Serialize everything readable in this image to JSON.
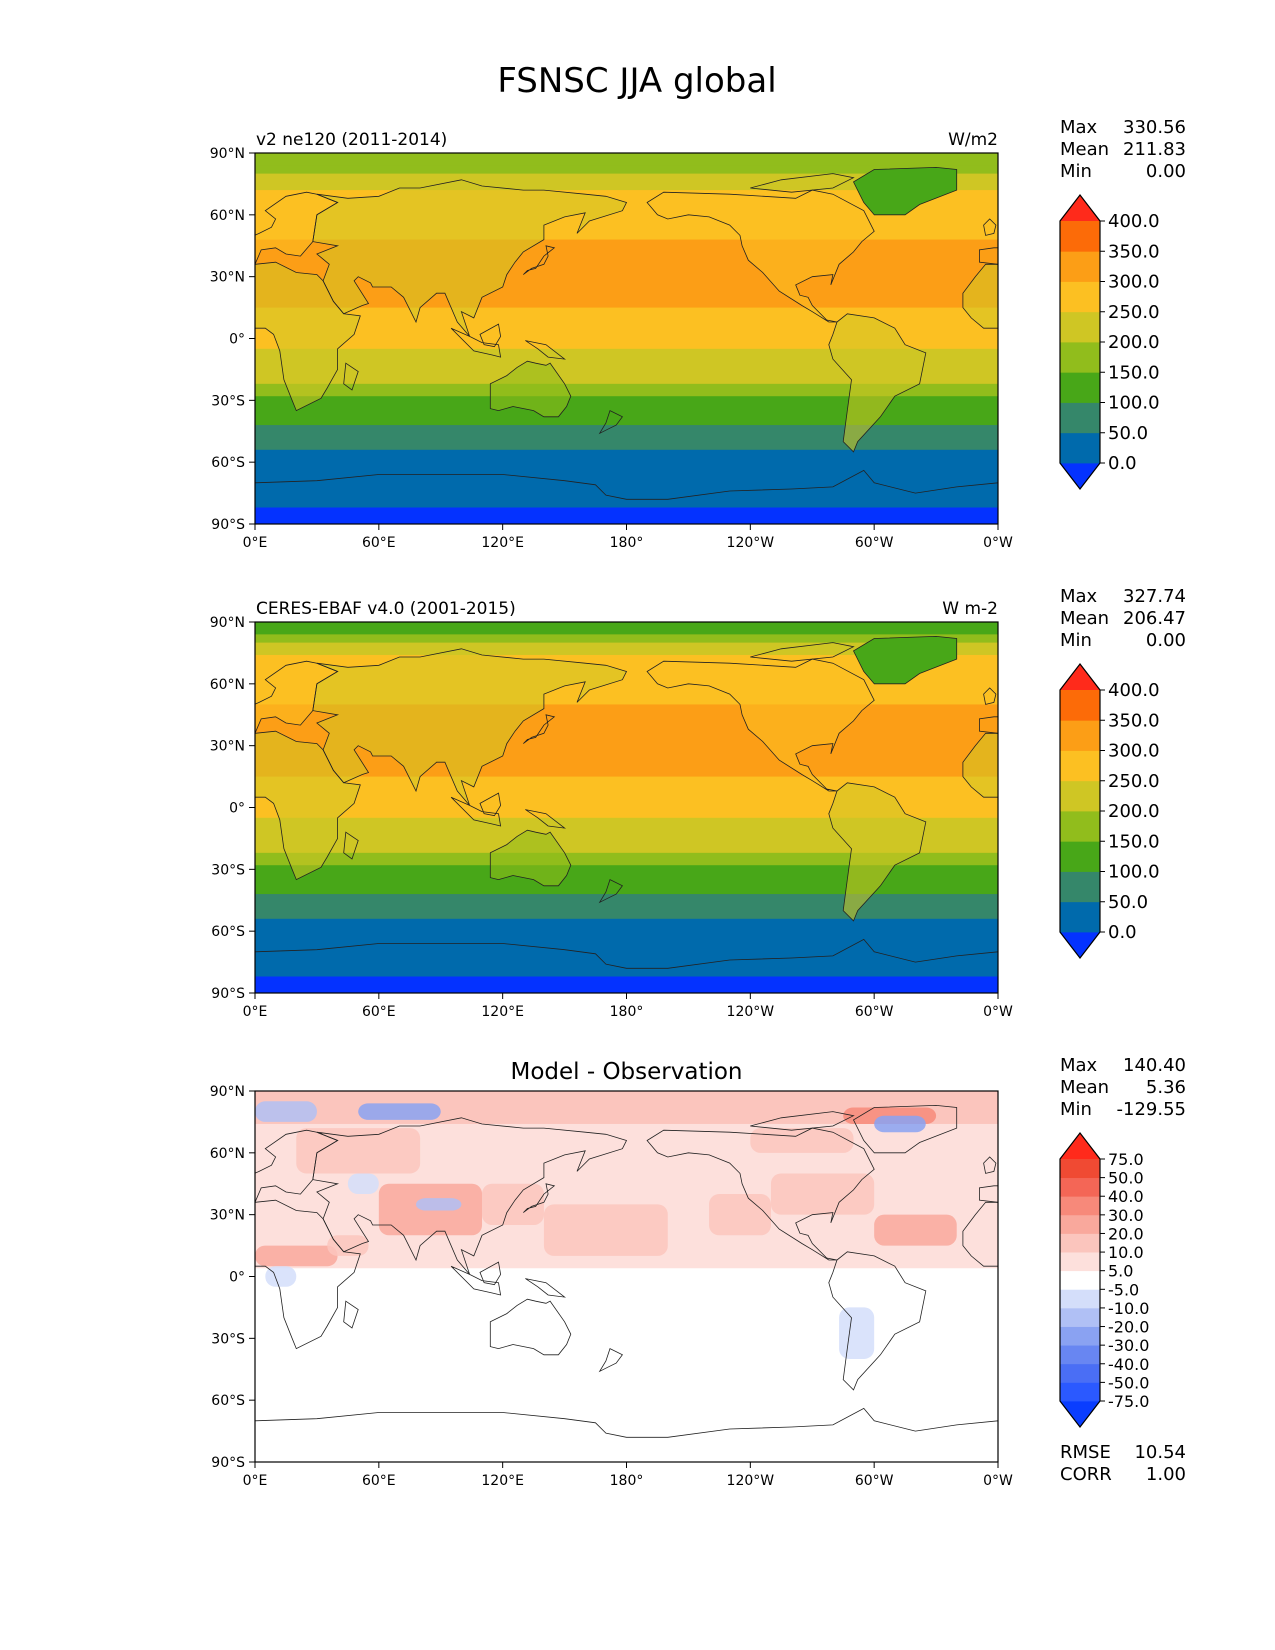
{
  "figure": {
    "title": "FSNSC JJA global"
  },
  "chart_data": [
    {
      "type": "heatmap",
      "kind": "map",
      "title": "",
      "left_label": "v2 ne120 (2011-2014)",
      "right_label": "W/m2",
      "stats": [
        {
          "label": "Max",
          "value": "330.56"
        },
        {
          "label": "Mean",
          "value": "211.83"
        },
        {
          "label": "Min",
          "value": "0.00"
        }
      ],
      "lat_ticks": [
        "90°N",
        "60°N",
        "30°N",
        "0°",
        "30°S",
        "60°S",
        "90°S"
      ],
      "lon_ticks": [
        "0°E",
        "60°E",
        "120°E",
        "180°",
        "120°W",
        "60°W",
        "0°W"
      ],
      "xlim": [
        0,
        360
      ],
      "ylim": [
        -90,
        90
      ],
      "colorbar": {
        "levels": [
          "0.0",
          "50.0",
          "100.0",
          "150.0",
          "200.0",
          "250.0",
          "300.0",
          "350.0",
          "400.0"
        ],
        "colors": [
          "#0432ff",
          "#006aac",
          "#35876a",
          "#48a718",
          "#91bd1c",
          "#cfc624",
          "#fcc022",
          "#fc9e16",
          "#fc6b08",
          "#ff2a1b"
        ],
        "extend": "both"
      },
      "fields": {
        "ocean_bands": [
          {
            "lat_from": 90,
            "lat_to": 84,
            "value": 170
          },
          {
            "lat_from": 84,
            "lat_to": 80,
            "value": 190
          },
          {
            "lat_from": 80,
            "lat_to": 72,
            "value": 230
          },
          {
            "lat_from": 72,
            "lat_to": 48,
            "value": 270
          },
          {
            "lat_from": 48,
            "lat_to": 15,
            "value": 310
          },
          {
            "lat_from": 15,
            "lat_to": -5,
            "value": 270
          },
          {
            "lat_from": -5,
            "lat_to": -13,
            "value": 230
          },
          {
            "lat_from": -13,
            "lat_to": -22,
            "value": 210
          },
          {
            "lat_from": -22,
            "lat_to": -28,
            "value": 170
          },
          {
            "lat_from": -28,
            "lat_to": -42,
            "value": 140
          },
          {
            "lat_from": -42,
            "lat_to": -54,
            "value": 80
          },
          {
            "lat_from": -54,
            "lat_to": -82,
            "value": 30
          },
          {
            "lat_from": -82,
            "lat_to": -90,
            "value": -10
          }
        ]
      }
    },
    {
      "type": "heatmap",
      "kind": "map",
      "title": "",
      "left_label": "CERES-EBAF v4.0 (2001-2015)",
      "right_label": "W m-2",
      "stats": [
        {
          "label": "Max",
          "value": "327.74"
        },
        {
          "label": "Mean",
          "value": "206.47"
        },
        {
          "label": "Min",
          "value": "0.00"
        }
      ],
      "lat_ticks": [
        "90°N",
        "60°N",
        "30°N",
        "0°",
        "30°S",
        "60°S",
        "90°S"
      ],
      "lon_ticks": [
        "0°E",
        "60°E",
        "120°E",
        "180°",
        "120°W",
        "60°W",
        "0°W"
      ],
      "xlim": [
        0,
        360
      ],
      "ylim": [
        -90,
        90
      ],
      "colorbar": {
        "levels": [
          "0.0",
          "50.0",
          "100.0",
          "150.0",
          "200.0",
          "250.0",
          "300.0",
          "350.0",
          "400.0"
        ],
        "colors": [
          "#0432ff",
          "#006aac",
          "#35876a",
          "#48a718",
          "#91bd1c",
          "#cfc624",
          "#fcc022",
          "#fc9e16",
          "#fc6b08",
          "#ff2a1b"
        ],
        "extend": "both"
      },
      "fields": {
        "ocean_bands": [
          {
            "lat_from": 90,
            "lat_to": 84,
            "value": 140
          },
          {
            "lat_from": 84,
            "lat_to": 80,
            "value": 160
          },
          {
            "lat_from": 80,
            "lat_to": 74,
            "value": 210
          },
          {
            "lat_from": 74,
            "lat_to": 50,
            "value": 260
          },
          {
            "lat_from": 50,
            "lat_to": 15,
            "value": 310
          },
          {
            "lat_from": 15,
            "lat_to": -5,
            "value": 270
          },
          {
            "lat_from": -5,
            "lat_to": -13,
            "value": 230
          },
          {
            "lat_from": -13,
            "lat_to": -22,
            "value": 210
          },
          {
            "lat_from": -22,
            "lat_to": -28,
            "value": 170
          },
          {
            "lat_from": -28,
            "lat_to": -42,
            "value": 140
          },
          {
            "lat_from": -42,
            "lat_to": -54,
            "value": 80
          },
          {
            "lat_from": -54,
            "lat_to": -82,
            "value": 30
          },
          {
            "lat_from": -82,
            "lat_to": -90,
            "value": -10
          }
        ]
      }
    },
    {
      "type": "heatmap",
      "kind": "map",
      "title": "Model - Observation",
      "left_label": "",
      "right_label": "",
      "stats": [
        {
          "label": "Max",
          "value": "140.40"
        },
        {
          "label": "Mean",
          "value": "5.36"
        },
        {
          "label": "Min",
          "value": "-129.55"
        }
      ],
      "bottom_stats": [
        {
          "label": "RMSE",
          "value": "10.54"
        },
        {
          "label": "CORR",
          "value": "1.00"
        }
      ],
      "lat_ticks": [
        "90°N",
        "60°N",
        "30°N",
        "0°",
        "30°S",
        "60°S",
        "90°S"
      ],
      "lon_ticks": [
        "0°E",
        "60°E",
        "120°E",
        "180°",
        "120°W",
        "60°W",
        "0°W"
      ],
      "xlim": [
        0,
        360
      ],
      "ylim": [
        -90,
        90
      ],
      "colorbar": {
        "levels": [
          "-75.0",
          "-50.0",
          "-40.0",
          "-30.0",
          "-20.0",
          "-10.0",
          "-5.0",
          "5.0",
          "10.0",
          "20.0",
          "30.0",
          "40.0",
          "50.0",
          "75.0"
        ],
        "colors": [
          "#0a3dff",
          "#2b59ff",
          "#4a6ef5",
          "#6886f2",
          "#8aa2f2",
          "#b0c0f5",
          "#d4defa",
          "#ffffff",
          "#fde0dc",
          "#fbc5bd",
          "#f9a89c",
          "#f7897a",
          "#f46656",
          "#f04a33",
          "#ff2a1b"
        ],
        "extend": "both"
      },
      "fields": {
        "ocean_bands": [
          {
            "lat_from": 90,
            "lat_to": 82,
            "value": 12
          },
          {
            "lat_from": 82,
            "lat_to": 74,
            "value": 15
          },
          {
            "lat_from": 74,
            "lat_to": 58,
            "value": 8
          },
          {
            "lat_from": 58,
            "lat_to": 18,
            "value": 7
          },
          {
            "lat_from": 18,
            "lat_to": 4,
            "value": 6
          },
          {
            "lat_from": 4,
            "lat_to": -90,
            "value": 0
          }
        ]
      }
    }
  ]
}
